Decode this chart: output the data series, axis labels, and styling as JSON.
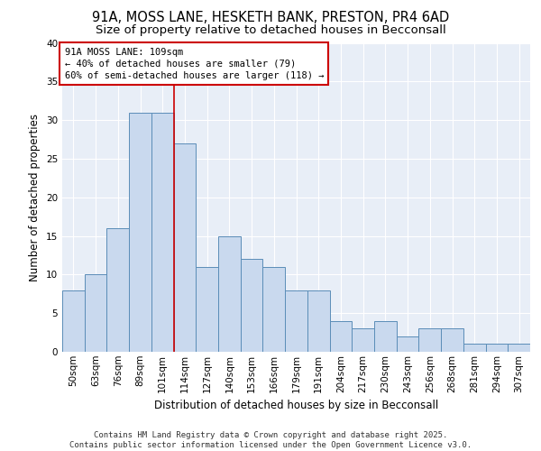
{
  "title_line1": "91A, MOSS LANE, HESKETH BANK, PRESTON, PR4 6AD",
  "title_line2": "Size of property relative to detached houses in Becconsall",
  "xlabel": "Distribution of detached houses by size in Becconsall",
  "ylabel": "Number of detached properties",
  "categories": [
    "50sqm",
    "63sqm",
    "76sqm",
    "89sqm",
    "101sqm",
    "114sqm",
    "127sqm",
    "140sqm",
    "153sqm",
    "166sqm",
    "179sqm",
    "191sqm",
    "204sqm",
    "217sqm",
    "230sqm",
    "243sqm",
    "256sqm",
    "268sqm",
    "281sqm",
    "294sqm",
    "307sqm"
  ],
  "values": [
    8,
    10,
    16,
    31,
    31,
    27,
    11,
    15,
    12,
    11,
    8,
    8,
    4,
    3,
    4,
    2,
    3,
    3,
    1,
    1,
    1
  ],
  "bar_color": "#c9d9ee",
  "bar_edge_color": "#5b8db8",
  "background_color": "#e8eef7",
  "grid_color": "#ffffff",
  "red_line_x": 4.5,
  "annotation_text": "91A MOSS LANE: 109sqm\n← 40% of detached houses are smaller (79)\n60% of semi-detached houses are larger (118) →",
  "annotation_box_color": "#ffffff",
  "annotation_box_edge": "#cc0000",
  "red_line_color": "#cc0000",
  "ylim": [
    0,
    40
  ],
  "yticks": [
    0,
    5,
    10,
    15,
    20,
    25,
    30,
    35,
    40
  ],
  "footer_text": "Contains HM Land Registry data © Crown copyright and database right 2025.\nContains public sector information licensed under the Open Government Licence v3.0.",
  "title_fontsize": 10.5,
  "subtitle_fontsize": 9.5,
  "axis_label_fontsize": 8.5,
  "tick_fontsize": 7.5,
  "annotation_fontsize": 7.5,
  "footer_fontsize": 6.5
}
